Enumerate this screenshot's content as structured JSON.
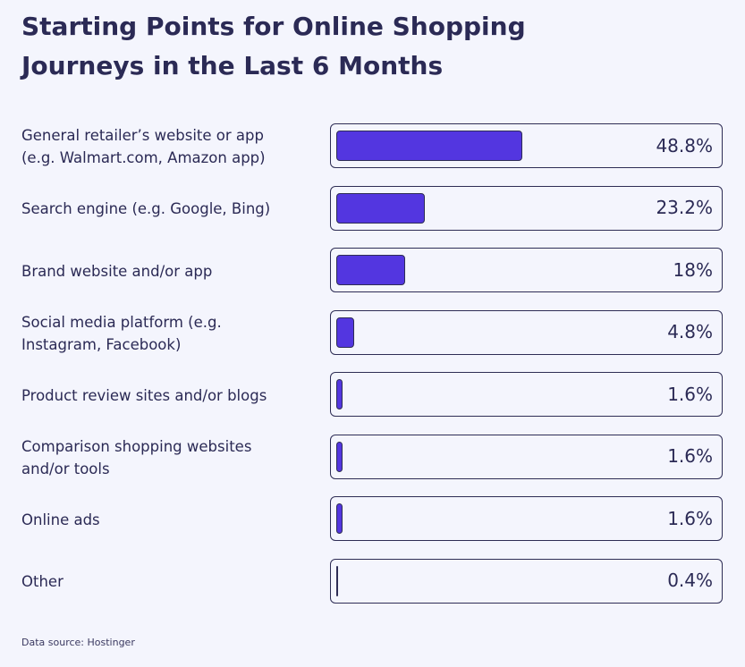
{
  "chart_data": {
    "type": "bar",
    "orientation": "horizontal",
    "title": "Starting Points for Online Shopping\nJourneys in the Last 6 Months",
    "categories": [
      "General retailer’s website or app\n(e.g. Walmart.com, Amazon app)",
      "Search engine (e.g. Google, Bing)",
      "Brand website and/or app",
      "Social media platform (e.g.\nInstagram, Facebook)",
      "Product review sites and/or blogs",
      "Comparison shopping websites\nand/or tools",
      "Online ads",
      "Other"
    ],
    "values": [
      48.8,
      23.2,
      18,
      4.8,
      1.6,
      1.6,
      1.6,
      0.4
    ],
    "value_labels": [
      "48.8%",
      "23.2%",
      "18%",
      "4.8%",
      "1.6%",
      "1.6%",
      "1.6%",
      "0.4%"
    ],
    "xlim": [
      0,
      100
    ],
    "unit": "%",
    "grid": false,
    "legend": "none",
    "source": "Data source: Hostinger"
  },
  "colors": {
    "bar": "#5336e0",
    "text": "#2b2a55",
    "outline": "#2e2d55",
    "background": "#f4f5fd"
  }
}
